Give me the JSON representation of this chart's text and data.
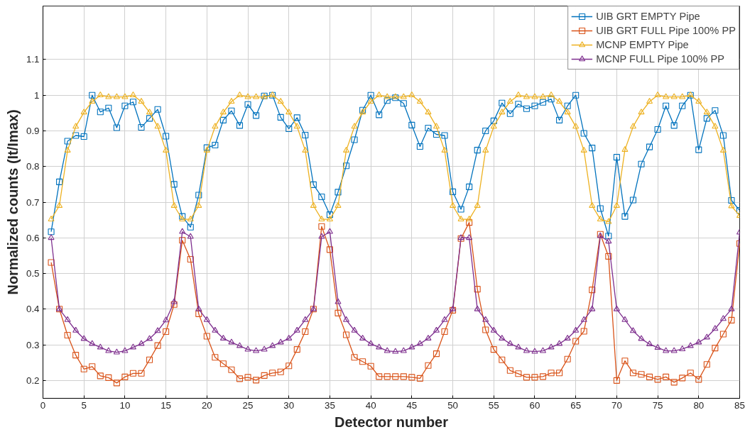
{
  "chart_data": {
    "type": "line",
    "xlabel": "Detector number",
    "ylabel": "Normalized counts (It/Imax)",
    "x": [
      1,
      2,
      3,
      4,
      5,
      6,
      7,
      8,
      9,
      10,
      11,
      12,
      13,
      14,
      15,
      16,
      17,
      18,
      19,
      20,
      21,
      22,
      23,
      24,
      25,
      26,
      27,
      28,
      29,
      30,
      31,
      32,
      33,
      34,
      35,
      36,
      37,
      38,
      39,
      40,
      41,
      42,
      43,
      44,
      45,
      46,
      47,
      48,
      49,
      50,
      51,
      52,
      53,
      54,
      55,
      56,
      57,
      58,
      59,
      60,
      61,
      62,
      63,
      64,
      65,
      66,
      67,
      68,
      69,
      70,
      71,
      72,
      73,
      74,
      75,
      76,
      77,
      78,
      79,
      80,
      81,
      82,
      83,
      84,
      85
    ],
    "xlim": [
      0,
      85
    ],
    "xticks": [
      0,
      5,
      10,
      15,
      20,
      25,
      30,
      35,
      40,
      45,
      50,
      55,
      60,
      65,
      70,
      75,
      80,
      85
    ],
    "ylim": [
      0.15,
      1.25
    ],
    "yticks": [
      0.2,
      0.3,
      0.4,
      0.5,
      0.6,
      0.7,
      0.8,
      0.9,
      1,
      1.1
    ],
    "grid": true,
    "legend": "top right",
    "line_style": "solid",
    "series": [
      {
        "name": "UIB GRT EMPTY Pipe",
        "color": "#0072bd",
        "marker": "square",
        "values": [
          0.617,
          0.757,
          0.871,
          0.887,
          0.884,
          1.0,
          0.953,
          0.964,
          0.909,
          0.97,
          0.981,
          0.91,
          0.935,
          0.96,
          0.885,
          0.75,
          0.66,
          0.63,
          0.72,
          0.853,
          0.86,
          0.93,
          0.956,
          0.915,
          0.974,
          0.943,
          0.998,
          1.0,
          0.938,
          0.906,
          0.937,
          0.888,
          0.749,
          0.715,
          0.665,
          0.728,
          0.802,
          0.875,
          0.958,
          1.0,
          0.945,
          0.985,
          0.993,
          0.977,
          0.916,
          0.856,
          0.908,
          0.89,
          0.887,
          0.729,
          0.68,
          0.743,
          0.846,
          0.9,
          0.928,
          0.978,
          0.948,
          0.975,
          0.962,
          0.97,
          0.98,
          0.989,
          0.93,
          0.97,
          1.0,
          0.893,
          0.852,
          0.682,
          0.605,
          0.826,
          0.66,
          0.706,
          0.807,
          0.855,
          0.904,
          0.97,
          0.915,
          0.97,
          1.0,
          0.847,
          0.935,
          0.957,
          0.887,
          0.705,
          0.677
        ]
      },
      {
        "name": "UIB GRT FULL Pipe 100% PP",
        "color": "#d95319",
        "marker": "square",
        "values": [
          0.531,
          0.4,
          0.327,
          0.271,
          0.232,
          0.239,
          0.213,
          0.208,
          0.193,
          0.21,
          0.22,
          0.22,
          0.258,
          0.298,
          0.337,
          0.413,
          0.593,
          0.54,
          0.387,
          0.324,
          0.265,
          0.247,
          0.23,
          0.205,
          0.209,
          0.201,
          0.214,
          0.221,
          0.224,
          0.241,
          0.287,
          0.337,
          0.4,
          0.632,
          0.567,
          0.389,
          0.328,
          0.265,
          0.253,
          0.24,
          0.211,
          0.211,
          0.211,
          0.211,
          0.209,
          0.206,
          0.242,
          0.275,
          0.337,
          0.397,
          0.598,
          0.643,
          0.456,
          0.342,
          0.287,
          0.258,
          0.228,
          0.219,
          0.209,
          0.209,
          0.211,
          0.221,
          0.221,
          0.26,
          0.31,
          0.338,
          0.454,
          0.61,
          0.548,
          0.2,
          0.255,
          0.221,
          0.217,
          0.21,
          0.203,
          0.21,
          0.195,
          0.207,
          0.221,
          0.203,
          0.245,
          0.291,
          0.33,
          0.369,
          0.584
        ]
      },
      {
        "name": "MCNP EMPTY Pipe",
        "color": "#edb120",
        "marker": "triangle",
        "values": [
          0.652,
          0.69,
          0.845,
          0.912,
          0.952,
          0.982,
          1.0,
          0.995,
          0.995,
          0.995,
          1.0,
          0.982,
          0.952,
          0.912,
          0.845,
          0.69,
          0.652,
          0.652,
          0.69,
          0.845,
          0.912,
          0.952,
          0.982,
          1.0,
          0.995,
          0.995,
          0.995,
          1.0,
          0.982,
          0.952,
          0.912,
          0.845,
          0.69,
          0.652,
          0.652,
          0.69,
          0.845,
          0.912,
          0.952,
          0.982,
          1.0,
          0.995,
          0.995,
          0.995,
          1.0,
          0.982,
          0.952,
          0.912,
          0.845,
          0.69,
          0.652,
          0.652,
          0.69,
          0.845,
          0.912,
          0.952,
          0.982,
          1.0,
          0.995,
          0.995,
          0.995,
          1.0,
          0.982,
          0.952,
          0.912,
          0.845,
          0.69,
          0.652,
          0.645,
          0.69,
          0.847,
          0.912,
          0.952,
          0.982,
          1.0,
          0.995,
          0.995,
          0.995,
          1.0,
          0.982,
          0.952,
          0.912,
          0.845,
          0.689,
          0.662
        ]
      },
      {
        "name": "MCNP FULL Pipe 100% PP",
        "color": "#7e2f8e",
        "marker": "triangle",
        "values": [
          0.6,
          0.4,
          0.37,
          0.34,
          0.317,
          0.303,
          0.293,
          0.283,
          0.279,
          0.283,
          0.293,
          0.303,
          0.317,
          0.339,
          0.369,
          0.42,
          0.617,
          0.603,
          0.4,
          0.37,
          0.34,
          0.318,
          0.307,
          0.297,
          0.287,
          0.283,
          0.287,
          0.297,
          0.307,
          0.318,
          0.34,
          0.37,
          0.4,
          0.603,
          0.617,
          0.42,
          0.37,
          0.34,
          0.318,
          0.303,
          0.293,
          0.283,
          0.281,
          0.283,
          0.293,
          0.303,
          0.318,
          0.34,
          0.37,
          0.4,
          0.6,
          0.6,
          0.4,
          0.37,
          0.34,
          0.318,
          0.303,
          0.293,
          0.283,
          0.281,
          0.283,
          0.293,
          0.303,
          0.318,
          0.34,
          0.37,
          0.4,
          0.605,
          0.59,
          0.4,
          0.37,
          0.339,
          0.317,
          0.302,
          0.292,
          0.283,
          0.283,
          0.288,
          0.297,
          0.307,
          0.321,
          0.345,
          0.373,
          0.4,
          0.615
        ]
      }
    ]
  }
}
